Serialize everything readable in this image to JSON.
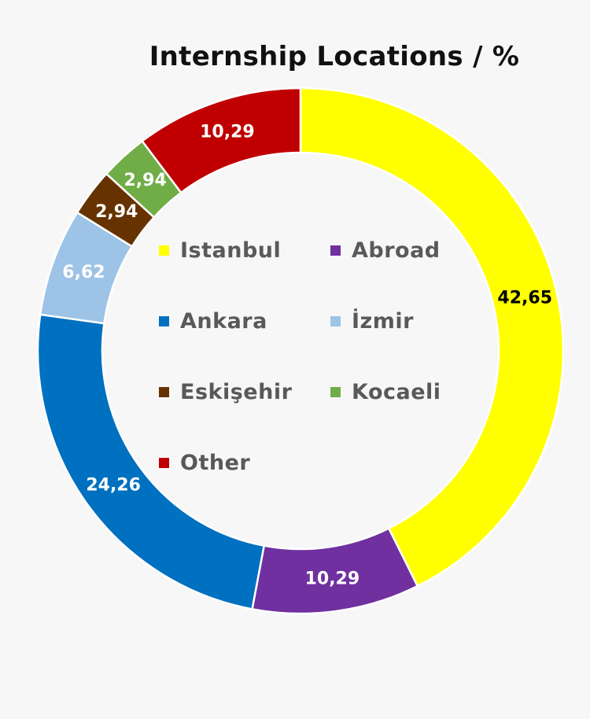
{
  "chart_data": {
    "type": "pie",
    "variant": "donut",
    "title": "Internship Locations / %",
    "categories": [
      "Istanbul",
      "Abroad",
      "Ankara",
      "İzmir",
      "Eskişehir",
      "Kocaeli",
      "Other"
    ],
    "values": [
      42.65,
      10.29,
      24.26,
      6.62,
      2.94,
      2.94,
      10.29
    ],
    "value_labels": [
      "42,65",
      "10,29",
      "24,26",
      "6,62",
      "2,94",
      "2,94",
      "10,29"
    ],
    "colors": [
      "#ffff00",
      "#7030a0",
      "#0070c0",
      "#9dc3e6",
      "#663300",
      "#70ad47",
      "#c00000"
    ],
    "label_colors": [
      "#000000",
      "#ffffff",
      "#ffffff",
      "#ffffff",
      "#ffffff",
      "#ffffff",
      "#ffffff"
    ],
    "legend_position": "center",
    "legend_columns": 2
  }
}
